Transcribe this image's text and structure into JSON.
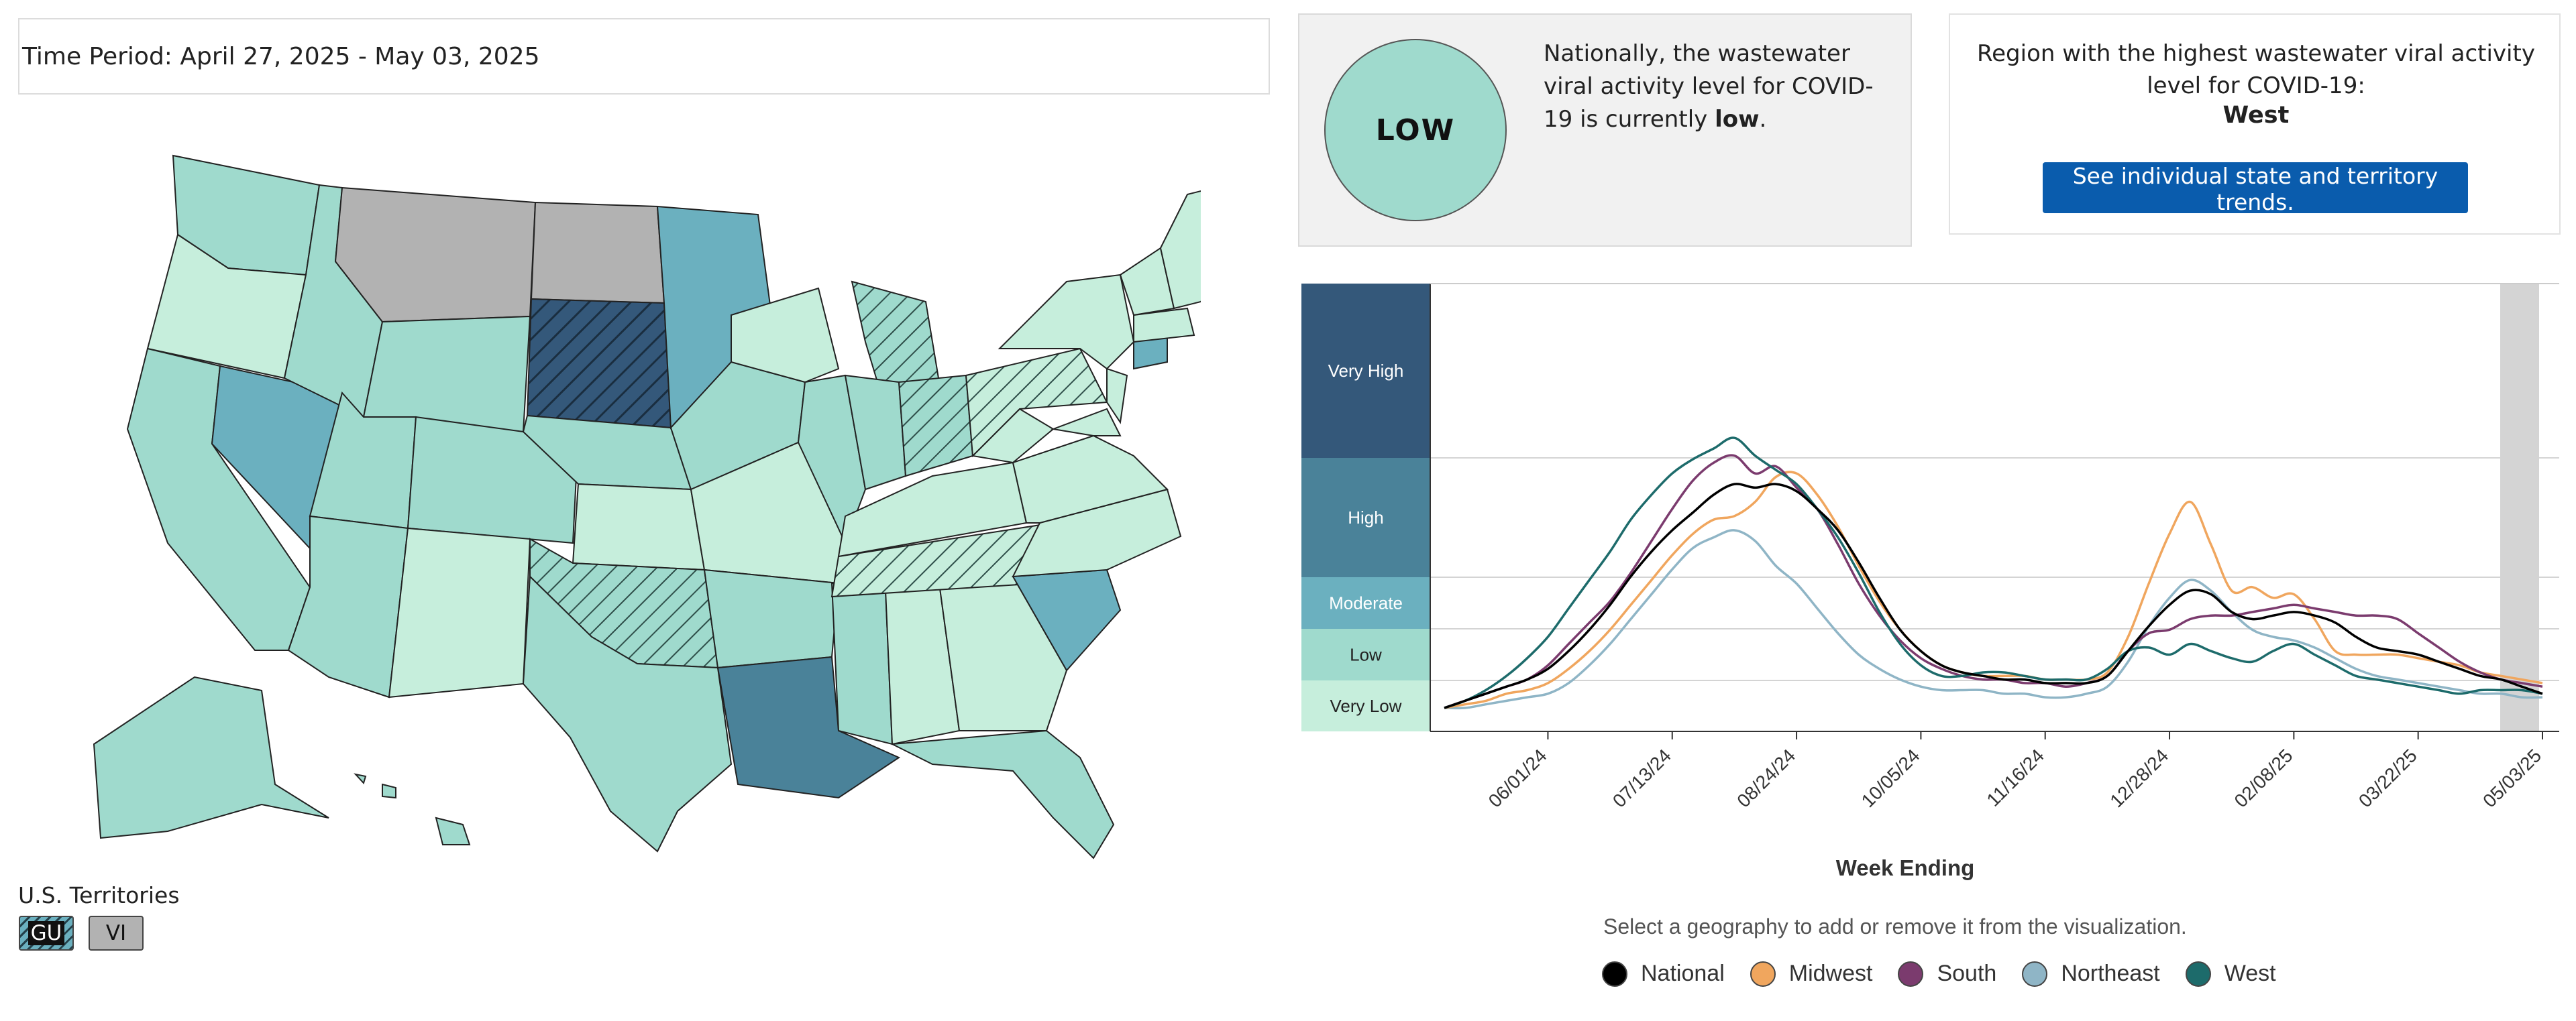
{
  "time_period": "Time Period: April 27, 2025 - May 03, 2025",
  "territories": {
    "label": "U.S. Territories",
    "items": [
      {
        "code": "GU",
        "level": "High",
        "hatched": true
      },
      {
        "code": "VI",
        "level": "No data",
        "hatched": false
      }
    ]
  },
  "national_card": {
    "level_badge": "LOW",
    "text_before": "Nationally, the wastewater viral activity level for COVID-19 is currently ",
    "text_level": "low",
    "text_after": "."
  },
  "region_card": {
    "text": "Region with the highest wastewater viral activity level for COVID-19:",
    "region": "West",
    "button_label": "See individual state and territory trends."
  },
  "level_colors": {
    "Very High": "#34587a",
    "High": "#4a8299",
    "Moderate": "#6bb0bf",
    "Low": "#9fdacd",
    "Very Low": "#c6eedc",
    "No data": "#b2b2b2"
  },
  "chart_data": {
    "type": "line",
    "xlabel": "Week Ending",
    "x_ticks": [
      "06/01/24",
      "07/13/24",
      "08/24/24",
      "10/05/24",
      "11/16/24",
      "12/28/24",
      "02/08/25",
      "03/22/25",
      "05/03/25"
    ],
    "y_bands": [
      "Very High",
      "High",
      "Moderate",
      "Low",
      "Very Low"
    ],
    "x": [
      "04/27/24",
      "05/04/24",
      "05/11/24",
      "05/18/24",
      "05/25/24",
      "06/01/24",
      "06/08/24",
      "06/15/24",
      "06/22/24",
      "06/29/24",
      "07/06/24",
      "07/13/24",
      "07/20/24",
      "07/27/24",
      "08/03/24",
      "08/10/24",
      "08/17/24",
      "08/24/24",
      "08/31/24",
      "09/07/24",
      "09/14/24",
      "09/21/24",
      "09/28/24",
      "10/05/24",
      "10/12/24",
      "10/19/24",
      "10/26/24",
      "11/02/24",
      "11/09/24",
      "11/16/24",
      "11/23/24",
      "11/30/24",
      "12/07/24",
      "12/14/24",
      "12/21/24",
      "12/28/24",
      "01/04/25",
      "01/11/25",
      "01/18/25",
      "01/25/25",
      "02/01/25",
      "02/08/25",
      "02/15/25",
      "02/22/25",
      "03/01/25",
      "03/08/25",
      "03/15/25",
      "03/22/25",
      "03/29/25",
      "04/05/25",
      "04/12/25",
      "04/19/25",
      "04/26/25",
      "05/03/25"
    ],
    "series": [
      {
        "name": "National",
        "color": "#000000",
        "values": [
          1.0,
          1.2,
          1.4,
          1.6,
          1.8,
          2.1,
          2.6,
          3.2,
          3.9,
          4.7,
          5.4,
          6.0,
          6.5,
          7.0,
          7.3,
          7.2,
          7.3,
          7.1,
          6.6,
          6.0,
          5.1,
          4.1,
          3.2,
          2.6,
          2.2,
          2.0,
          1.9,
          1.8,
          1.8,
          1.7,
          1.7,
          1.7,
          1.9,
          2.6,
          3.3,
          3.9,
          4.3,
          4.2,
          3.7,
          3.5,
          3.6,
          3.7,
          3.6,
          3.4,
          3.0,
          2.7,
          2.6,
          2.5,
          2.3,
          2.1,
          1.9,
          1.8,
          1.6,
          1.4
        ]
      },
      {
        "name": "Midwest",
        "color": "#f0a65e",
        "values": [
          1.0,
          1.1,
          1.2,
          1.4,
          1.5,
          1.7,
          2.1,
          2.6,
          3.2,
          3.9,
          4.6,
          5.3,
          5.9,
          6.3,
          6.4,
          6.8,
          7.5,
          7.6,
          7.0,
          6.1,
          5.0,
          4.0,
          3.2,
          2.6,
          2.2,
          2.0,
          1.9,
          1.9,
          1.9,
          1.8,
          1.8,
          1.8,
          2.0,
          3.0,
          4.5,
          5.9,
          6.8,
          5.6,
          4.3,
          4.4,
          4.1,
          4.2,
          3.5,
          2.6,
          2.5,
          2.5,
          2.5,
          2.4,
          2.3,
          2.2,
          2.0,
          1.9,
          1.8,
          1.7
        ]
      },
      {
        "name": "South",
        "color": "#7b3b6e",
        "values": [
          1.0,
          1.2,
          1.4,
          1.6,
          1.8,
          2.2,
          2.8,
          3.4,
          4.0,
          4.8,
          5.7,
          6.6,
          7.4,
          7.9,
          8.1,
          7.6,
          7.8,
          7.2,
          6.6,
          5.6,
          4.5,
          3.6,
          2.9,
          2.4,
          2.1,
          1.9,
          1.8,
          1.8,
          1.7,
          1.7,
          1.6,
          1.7,
          1.9,
          2.6,
          3.1,
          3.2,
          3.5,
          3.6,
          3.6,
          3.7,
          3.8,
          3.9,
          3.8,
          3.7,
          3.6,
          3.6,
          3.5,
          3.1,
          2.7,
          2.3,
          2.0,
          1.8,
          1.7,
          1.6
        ]
      },
      {
        "name": "Northeast",
        "color": "#8fb5c6",
        "values": [
          1.0,
          1.0,
          1.1,
          1.2,
          1.3,
          1.4,
          1.7,
          2.2,
          2.8,
          3.5,
          4.2,
          4.9,
          5.5,
          5.8,
          6.0,
          5.7,
          5.0,
          4.5,
          3.8,
          3.1,
          2.5,
          2.1,
          1.8,
          1.6,
          1.5,
          1.5,
          1.5,
          1.4,
          1.4,
          1.3,
          1.3,
          1.4,
          1.6,
          2.3,
          3.3,
          4.1,
          4.6,
          4.3,
          3.7,
          3.2,
          3.0,
          2.9,
          2.7,
          2.4,
          2.1,
          1.9,
          1.8,
          1.7,
          1.6,
          1.5,
          1.4,
          1.4,
          1.3,
          1.3
        ]
      },
      {
        "name": "West",
        "color": "#1d6b6b",
        "values": [
          1.0,
          1.2,
          1.5,
          1.9,
          2.4,
          3.0,
          3.8,
          4.6,
          5.4,
          6.3,
          7.0,
          7.6,
          8.0,
          8.3,
          8.6,
          8.1,
          7.7,
          7.3,
          6.6,
          5.8,
          4.8,
          3.7,
          2.8,
          2.2,
          1.9,
          1.9,
          2.0,
          2.0,
          1.9,
          1.8,
          1.8,
          1.8,
          2.1,
          2.6,
          2.7,
          2.5,
          2.8,
          2.6,
          2.4,
          2.3,
          2.6,
          2.8,
          2.5,
          2.2,
          1.9,
          1.8,
          1.7,
          1.6,
          1.5,
          1.4,
          1.5,
          1.5,
          1.5,
          1.4
        ]
      }
    ]
  },
  "legend": {
    "caption": "Select a geography to add or remove it from the visualization.",
    "items": [
      {
        "name": "National",
        "color": "#000000"
      },
      {
        "name": "Midwest",
        "color": "#f0a65e"
      },
      {
        "name": "South",
        "color": "#7b3b6e"
      },
      {
        "name": "Northeast",
        "color": "#8fb5c6"
      },
      {
        "name": "West",
        "color": "#1d6b6b"
      }
    ]
  }
}
